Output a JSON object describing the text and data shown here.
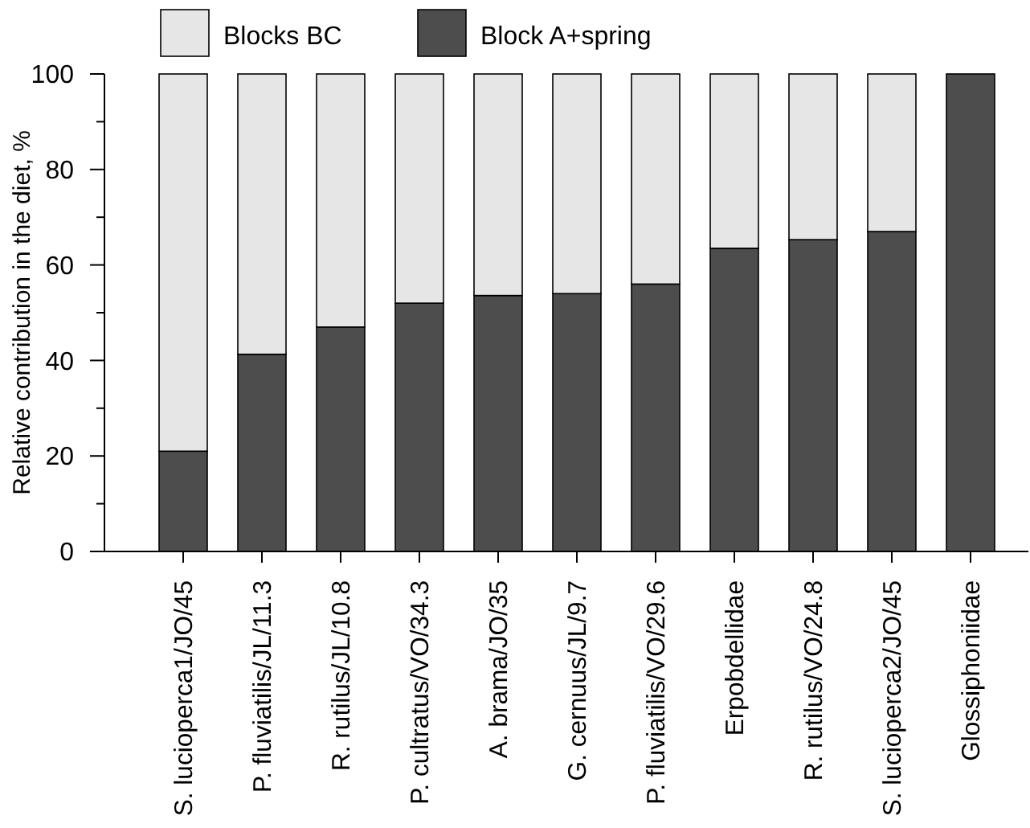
{
  "chart_data": {
    "type": "bar",
    "stacked": true,
    "ylabel": "Relative contribution in the diet, %",
    "categories": [
      "S. lucioperca1/JO/45",
      "P. fluviatilis/JL/11.3",
      "R. rutilus/JL/10.8",
      "P. cultratus/VO/34.3",
      "A. brama/JO/35",
      "G. cernuus/JL/9.7",
      "P. fluviatilis/VO/29.6",
      "Erpobdellidae",
      "R. rutilus/VO/24.8",
      "S. lucioperca2/JO/45",
      "Glossiphoniidae"
    ],
    "series": [
      {
        "name": "Block A+spring",
        "color": "#4d4d4d",
        "values": [
          21,
          41.3,
          47,
          52,
          53.6,
          54,
          56,
          63.5,
          65.3,
          67,
          100
        ]
      },
      {
        "name": "Blocks BC",
        "color": "#e6e6e6",
        "values": [
          79,
          58.7,
          53,
          48,
          46.4,
          46,
          44,
          36.5,
          34.7,
          33,
          0
        ]
      }
    ],
    "ylim": [
      0,
      100
    ],
    "yticks": [
      0,
      {
        "value": 10,
        "label": null
      },
      20,
      {
        "value": 30,
        "label": null
      },
      40,
      {
        "value": 50,
        "label": null
      },
      60,
      {
        "value": 70,
        "label": null
      },
      80,
      {
        "value": 90,
        "label": null
      },
      100
    ],
    "legend": "top"
  }
}
